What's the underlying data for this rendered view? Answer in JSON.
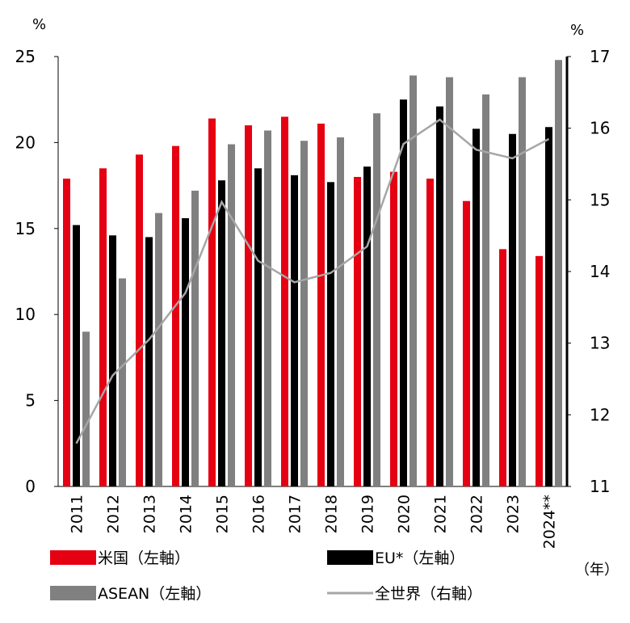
{
  "chart_data": {
    "type": "bar",
    "categories": [
      "2011",
      "2012",
      "2013",
      "2014",
      "2015",
      "2016",
      "2017",
      "2018",
      "2019",
      "2020",
      "2021",
      "2022",
      "2023",
      "2024**"
    ],
    "series": [
      {
        "name": "米国（左軸）",
        "axis": "left",
        "kind": "bar",
        "color": "#e50012",
        "values": [
          17.9,
          18.5,
          19.3,
          19.8,
          21.4,
          21.0,
          21.5,
          21.1,
          18.0,
          18.3,
          17.9,
          16.6,
          13.8,
          13.4
        ]
      },
      {
        "name": "EU*（左軸）",
        "axis": "left",
        "kind": "bar",
        "color": "#000000",
        "values": [
          15.2,
          14.6,
          14.5,
          15.6,
          17.8,
          18.5,
          18.1,
          17.7,
          18.6,
          22.5,
          22.1,
          20.8,
          20.5,
          20.9
        ]
      },
      {
        "name": "ASEAN（左軸）",
        "axis": "left",
        "kind": "bar",
        "color": "#808080",
        "values": [
          9.0,
          12.1,
          15.9,
          17.2,
          19.9,
          20.7,
          20.1,
          20.3,
          21.7,
          23.9,
          23.8,
          22.8,
          23.8,
          24.8
        ]
      },
      {
        "name": "全世界（右軸）",
        "axis": "right",
        "kind": "line",
        "color": "#a6a6a6",
        "values": [
          11.6,
          12.55,
          13.05,
          13.7,
          14.97,
          14.15,
          13.85,
          13.98,
          14.35,
          15.78,
          16.12,
          15.7,
          15.58,
          15.85
        ]
      }
    ],
    "y_left": {
      "unit": "%",
      "ylim": [
        0,
        25
      ],
      "ticks": [
        "0",
        "5",
        "10",
        "15",
        "20",
        "25"
      ]
    },
    "y_right": {
      "unit": "%",
      "ylim": [
        11,
        17
      ],
      "ticks": [
        "11",
        "12",
        "13",
        "14",
        "15",
        "16",
        "17"
      ]
    },
    "x_unit": "（年）",
    "grid": false,
    "legend": [
      {
        "label": "米国（左軸）",
        "type": "bar",
        "color": "#e50012"
      },
      {
        "label": "EU*（左軸）",
        "type": "bar",
        "color": "#000000"
      },
      {
        "label": "ASEAN（左軸）",
        "type": "bar",
        "color": "#808080"
      },
      {
        "label": "全世界（右軸）",
        "type": "line",
        "color": "#a6a6a6"
      }
    ],
    "legend_position": "bottom"
  }
}
